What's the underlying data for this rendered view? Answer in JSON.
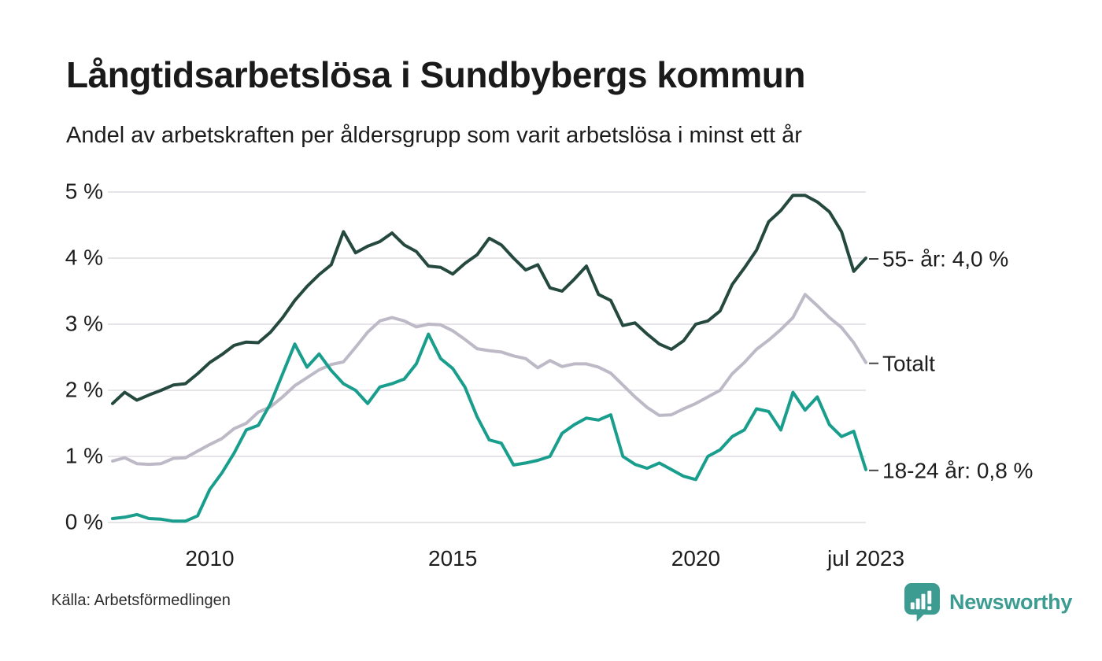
{
  "title": "Långtidsarbetslösa i Sundbybergs kommun",
  "subtitle": "Andel av arbetskraften per åldersgrupp som varit arbetslösa i minst ett år",
  "source": "Källa: Arbetsförmedlingen",
  "brand": {
    "name": "Newsworthy",
    "color": "#3d9c92"
  },
  "colors": {
    "background": "#ffffff",
    "grid": "#e6e4e9",
    "axis_text": "#1d1d1d",
    "connector": "#454545"
  },
  "chart_data": {
    "type": "line",
    "title": "Långtidsarbetslösa i Sundbybergs kommun",
    "xlabel": "",
    "ylabel": "",
    "x_start": 2008.0,
    "x_step": 0.25,
    "x_end": 2023.5,
    "ylim": [
      0,
      5
    ],
    "grid": "horizontal",
    "legend_position": "end-of-line",
    "y_ticks": [
      {
        "value": 0,
        "label": "0 %"
      },
      {
        "value": 1,
        "label": "1 %"
      },
      {
        "value": 2,
        "label": "2 %"
      },
      {
        "value": 3,
        "label": "3 %"
      },
      {
        "value": 4,
        "label": "4 %"
      },
      {
        "value": 5,
        "label": "5 %"
      }
    ],
    "x_ticks": [
      {
        "value": 2010,
        "label": "2010"
      },
      {
        "value": 2015,
        "label": "2015"
      },
      {
        "value": 2020,
        "label": "2020"
      },
      {
        "value": 2023.5,
        "label": "jul 2023"
      }
    ],
    "series": [
      {
        "name": "Totalt",
        "end_label": "Totalt",
        "color": "#bdb9c6",
        "values": [
          0.93,
          0.98,
          0.89,
          0.88,
          0.89,
          0.97,
          0.98,
          1.08,
          1.18,
          1.27,
          1.42,
          1.5,
          1.67,
          1.75,
          1.9,
          2.07,
          2.19,
          2.31,
          2.39,
          2.43,
          2.65,
          2.88,
          3.05,
          3.1,
          3.05,
          2.96,
          3.0,
          2.99,
          2.9,
          2.77,
          2.63,
          2.6,
          2.58,
          2.52,
          2.48,
          2.34,
          2.45,
          2.36,
          2.4,
          2.4,
          2.35,
          2.26,
          2.08,
          1.9,
          1.74,
          1.62,
          1.63,
          1.72,
          1.8,
          1.9,
          2.0,
          2.25,
          2.42,
          2.62,
          2.76,
          2.92,
          3.1,
          3.45,
          3.28,
          3.1,
          2.95,
          2.72,
          2.42
        ]
      },
      {
        "name": "55- år",
        "end_label": "55- år: 4,0 %",
        "color": "#25493f",
        "values": [
          1.8,
          1.97,
          1.85,
          1.93,
          2.0,
          2.08,
          2.1,
          2.25,
          2.42,
          2.54,
          2.68,
          2.73,
          2.72,
          2.88,
          3.1,
          3.36,
          3.57,
          3.75,
          3.9,
          4.4,
          4.08,
          4.18,
          4.25,
          4.38,
          4.2,
          4.1,
          3.88,
          3.86,
          3.76,
          3.92,
          4.05,
          4.3,
          4.2,
          4.0,
          3.82,
          3.9,
          3.55,
          3.5,
          3.68,
          3.88,
          3.45,
          3.36,
          2.98,
          3.02,
          2.85,
          2.7,
          2.62,
          2.75,
          3.0,
          3.05,
          3.2,
          3.6,
          3.85,
          4.12,
          4.55,
          4.72,
          4.95,
          4.95,
          4.85,
          4.7,
          4.4,
          3.8,
          4.0
        ]
      },
      {
        "name": "18-24 år",
        "end_label": "18-24 år: 0,8 %",
        "color": "#199e8d",
        "values": [
          0.06,
          0.08,
          0.12,
          0.06,
          0.05,
          0.02,
          0.02,
          0.1,
          0.5,
          0.75,
          1.05,
          1.4,
          1.47,
          1.8,
          2.25,
          2.7,
          2.35,
          2.55,
          2.3,
          2.1,
          2.0,
          1.8,
          2.05,
          2.1,
          2.17,
          2.4,
          2.85,
          2.48,
          2.33,
          2.05,
          1.6,
          1.25,
          1.2,
          0.87,
          0.9,
          0.94,
          1.0,
          1.35,
          1.48,
          1.58,
          1.55,
          1.63,
          1.0,
          0.88,
          0.82,
          0.9,
          0.8,
          0.7,
          0.65,
          1.0,
          1.1,
          1.3,
          1.4,
          1.72,
          1.68,
          1.4,
          1.97,
          1.7,
          1.9,
          1.48,
          1.3,
          1.38,
          0.8
        ]
      }
    ]
  }
}
